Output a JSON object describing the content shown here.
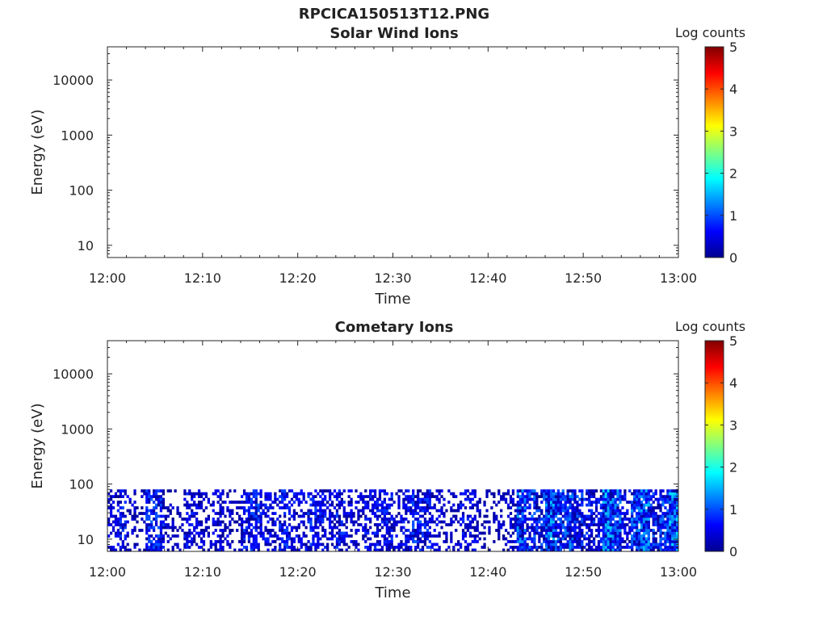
{
  "figure": {
    "title": "RPCICA150513T12.PNG"
  },
  "colormap": {
    "stops": [
      "#00008f",
      "#0000ff",
      "#0080ff",
      "#00ffff",
      "#80ff80",
      "#ffff00",
      "#ff8000",
      "#ff0000",
      "#800000"
    ],
    "label": "Log counts",
    "ticks": [
      "0",
      "1",
      "2",
      "3",
      "4",
      "5"
    ]
  },
  "chart_data": [
    {
      "type": "heatmap",
      "title": "Solar Wind Ions",
      "xlabel": "Time",
      "ylabel": "Energy (eV)",
      "x_ticks": [
        "12:00",
        "12:10",
        "12:20",
        "12:30",
        "12:40",
        "12:50",
        "13:00"
      ],
      "y_ticks": [
        "10",
        "100",
        "1000",
        "10000"
      ],
      "y_scale": "log",
      "ylim": [
        6,
        40000
      ],
      "xlim": [
        "12:00",
        "13:00"
      ],
      "colorbar_label": "Log counts",
      "colorbar_range": [
        0,
        5
      ],
      "description_of_data": "empty",
      "energy_range_with_counts": null,
      "activity_by_minute": []
    },
    {
      "type": "heatmap",
      "title": "Cometary Ions",
      "xlabel": "Time",
      "ylabel": "Energy (eV)",
      "x_ticks": [
        "12:00",
        "12:10",
        "12:20",
        "12:30",
        "12:40",
        "12:50",
        "13:00"
      ],
      "y_ticks": [
        "10",
        "100",
        "1000",
        "10000"
      ],
      "y_scale": "log",
      "ylim": [
        6,
        40000
      ],
      "xlim": [
        "12:00",
        "13:00"
      ],
      "colorbar_label": "Log counts",
      "colorbar_range": [
        0,
        5
      ],
      "energy_range_with_counts": [
        6,
        80
      ],
      "activity_by_minute": [
        0.6,
        0.8,
        0.5,
        0.3,
        0.9,
        0.9,
        0.4,
        0.3,
        0.7,
        0.6,
        0.4,
        0.6,
        0.5,
        0.3,
        0.8,
        0.9,
        0.7,
        0.6,
        0.8,
        0.7,
        0.6,
        0.8,
        0.7,
        0.6,
        0.8,
        0.6,
        0.5,
        0.7,
        0.7,
        0.8,
        0.6,
        0.7,
        0.9,
        0.8,
        0.6,
        0.4,
        0.4,
        0.7,
        0.6,
        0.3,
        0.3,
        0.4,
        0.5,
        1.2,
        1.0,
        0.9,
        1.3,
        1.0,
        1.1,
        0.9,
        0.8,
        0.8,
        1.4,
        1.2,
        0.7,
        1.1,
        1.3,
        0.9,
        1.0,
        1.4
      ]
    }
  ]
}
